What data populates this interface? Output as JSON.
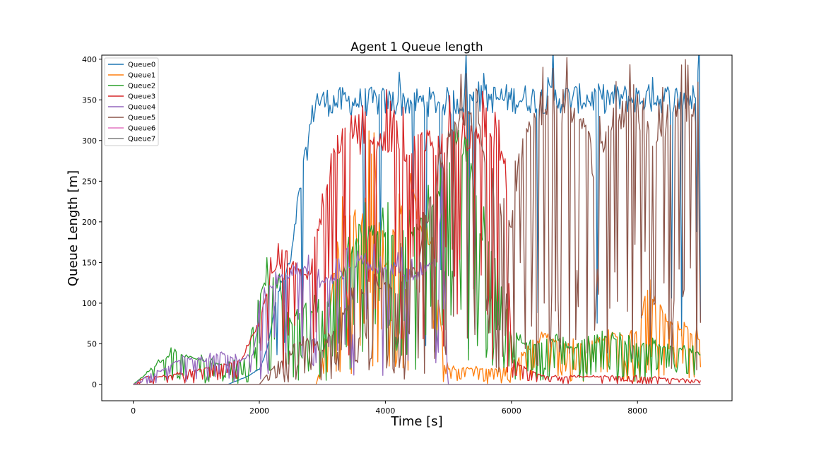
{
  "chart_data": {
    "type": "line",
    "title": "Agent 1 Queue length",
    "xlabel": "Time [s]",
    "ylabel": "Queue Length [m]",
    "xlim": [
      -500,
      9500
    ],
    "ylim": [
      -20,
      405
    ],
    "xticks": [
      0,
      2000,
      4000,
      6000,
      8000
    ],
    "yticks": [
      0,
      50,
      100,
      150,
      200,
      250,
      300,
      350,
      400
    ],
    "grid": false,
    "legend_position": "upper-left",
    "series": [
      {
        "name": "Queue0",
        "color": "#1f77b4",
        "noise": 0.15,
        "x": [
          0,
          1500,
          1800,
          2000,
          2100,
          2200,
          2300,
          2400,
          2500,
          2550,
          2600,
          2650,
          2700,
          2750,
          2800,
          2850,
          2900,
          3000,
          4000,
          5000,
          5400,
          5500,
          6000,
          7000,
          8000,
          9000
        ],
        "y": [
          0,
          0,
          10,
          20,
          40,
          80,
          120,
          140,
          160,
          190,
          230,
          250,
          280,
          300,
          330,
          350,
          370,
          366,
          366,
          366,
          368,
          370,
          370,
          370,
          370,
          370
        ]
      },
      {
        "name": "Queue1",
        "color": "#ff7f0e",
        "noise": 0.95,
        "x": [
          0,
          2900,
          3000,
          3100,
          3200,
          3300,
          3400,
          3500,
          3600,
          3700,
          3800,
          3900,
          4000,
          4200,
          4400,
          4600,
          4800,
          4900,
          5000,
          6000,
          6200,
          6500,
          7000,
          7500,
          8000,
          8200,
          8500,
          9000
        ],
        "y": [
          0,
          0,
          30,
          80,
          150,
          200,
          240,
          200,
          180,
          260,
          320,
          200,
          150,
          220,
          250,
          200,
          150,
          60,
          20,
          20,
          40,
          60,
          50,
          60,
          70,
          120,
          80,
          60
        ]
      },
      {
        "name": "Queue2",
        "color": "#2ca02c",
        "noise": 0.95,
        "x": [
          0,
          300,
          600,
          900,
          1200,
          1500,
          1800,
          2000,
          2200,
          2500,
          2800,
          3000,
          3300,
          3600,
          3900,
          4000,
          4300,
          4600,
          4900,
          5200,
          5500,
          5800,
          6000,
          6300,
          6600,
          7000,
          7500,
          8000,
          8500,
          9000
        ],
        "y": [
          0,
          20,
          40,
          35,
          30,
          25,
          30,
          120,
          150,
          80,
          100,
          90,
          140,
          200,
          190,
          200,
          180,
          210,
          250,
          320,
          200,
          150,
          60,
          50,
          60,
          45,
          60,
          50,
          50,
          40
        ]
      },
      {
        "name": "Queue3",
        "color": "#d62728",
        "noise": 0.75,
        "x": [
          0,
          200,
          500,
          800,
          1100,
          1400,
          1700,
          2000,
          2200,
          2400,
          2600,
          2800,
          3000,
          3200,
          3300,
          3500,
          3700,
          4000,
          4300,
          4600,
          5000,
          5400,
          5700,
          5900,
          6000,
          6500,
          7000,
          8000,
          9000
        ],
        "y": [
          0,
          10,
          10,
          15,
          20,
          25,
          30,
          80,
          150,
          160,
          150,
          140,
          220,
          300,
          318,
          318,
          310,
          318,
          300,
          315,
          310,
          320,
          315,
          300,
          30,
          10,
          10,
          10,
          5
        ]
      },
      {
        "name": "Queue4",
        "color": "#9467bd",
        "noise": 0.6,
        "x": [
          0,
          200,
          500,
          800,
          1100,
          1400,
          1700,
          1900,
          2000,
          2200,
          2400,
          2600,
          2800,
          3000,
          3300,
          3600,
          3900,
          4200,
          4500,
          4800,
          4900,
          5000,
          6000,
          9000
        ],
        "y": [
          0,
          10,
          20,
          35,
          30,
          40,
          30,
          40,
          90,
          130,
          140,
          150,
          140,
          130,
          140,
          160,
          150,
          150,
          140,
          160,
          240,
          0,
          0,
          0
        ]
      },
      {
        "name": "Queue5",
        "color": "#8c564b",
        "noise": 0.85,
        "x": [
          0,
          2000,
          2200,
          2500,
          2800,
          3000,
          3300,
          3600,
          3900,
          4200,
          4500,
          4700,
          4900,
          5100,
          5300,
          5500,
          5700,
          5900,
          6000,
          6100,
          6300,
          6600,
          7000,
          7200,
          7300,
          7600,
          8000,
          8300,
          8600,
          9000
        ],
        "y": [
          0,
          0,
          20,
          40,
          60,
          40,
          90,
          120,
          130,
          120,
          150,
          230,
          280,
          330,
          350,
          320,
          250,
          210,
          200,
          280,
          350,
          355,
          350,
          340,
          270,
          350,
          340,
          320,
          350,
          350
        ]
      },
      {
        "name": "Queue6",
        "color": "#e377c2",
        "noise": 0,
        "x": [
          0,
          9000
        ],
        "y": [
          0,
          0
        ]
      },
      {
        "name": "Queue7",
        "color": "#7f7f7f",
        "noise": 0,
        "x": [
          0,
          9000
        ],
        "y": [
          0,
          0
        ]
      }
    ]
  }
}
